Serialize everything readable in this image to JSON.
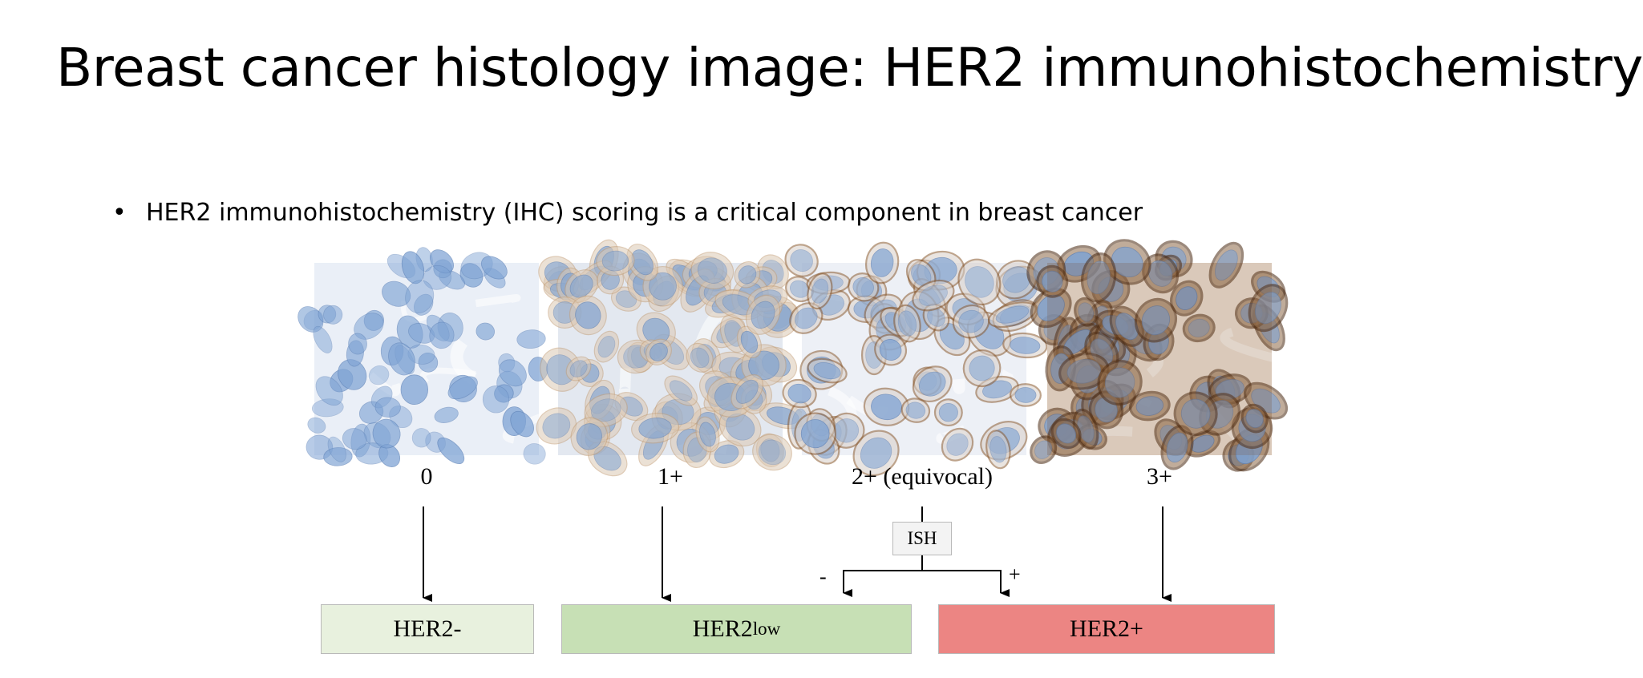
{
  "slide": {
    "title": "Breast cancer histology image: HER2 immunohistochemistry",
    "bullet": "HER2 immunohistochemistry (IHC) scoring is a critical component in breast cancer"
  },
  "diagram": {
    "panels": [
      {
        "score": "0",
        "stain": "none"
      },
      {
        "score": "1+",
        "stain": "faint"
      },
      {
        "score": "2+ (equivocal)",
        "stain": "moderate"
      },
      {
        "score": "3+",
        "stain": "strong"
      }
    ],
    "test": {
      "label": "ISH",
      "negative_sign": "-",
      "positive_sign": "+"
    },
    "categories": [
      {
        "main": "HER2-",
        "sub": "",
        "color": "#e8f1de"
      },
      {
        "main": "HER2",
        "sub": "low",
        "color": "#c7e0b5"
      },
      {
        "main": "HER2+",
        "sub": "",
        "color": "#ec8583"
      }
    ],
    "colors": {
      "hematoxylin": "#7ea3d4",
      "dab": "#7a4a22",
      "arrow": "#000000",
      "connector": "#000000"
    }
  }
}
